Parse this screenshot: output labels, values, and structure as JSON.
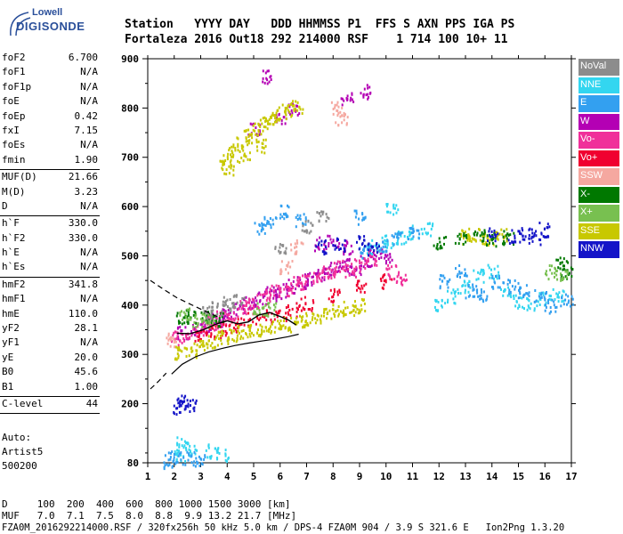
{
  "logo": {
    "line1": "Lowell",
    "line2": "DIGISONDE"
  },
  "header": {
    "labels_line": "Station   YYYY DAY   DDD HHMMSS P1  FFS S AXN PPS IGA PS",
    "values_line": "Fortaleza 2016 Out18 292 214000 RSF    1 714 100 10+ 11"
  },
  "params": [
    {
      "name": "foF2",
      "value": "6.700"
    },
    {
      "name": "foF1",
      "value": "N/A"
    },
    {
      "name": "foF1p",
      "value": "N/A"
    },
    {
      "name": "foE",
      "value": "N/A"
    },
    {
      "name": "foEp",
      "value": "0.42"
    },
    {
      "name": "fxI",
      "value": "7.15"
    },
    {
      "name": "foEs",
      "value": "N/A"
    },
    {
      "name": "fmin",
      "value": "1.90"
    },
    {
      "sep": true
    },
    {
      "name": "MUF(D)",
      "value": "21.66"
    },
    {
      "name": "M(D)",
      "value": "3.23"
    },
    {
      "name": "D",
      "value": "N/A"
    },
    {
      "sep": true
    },
    {
      "name": "h`F",
      "value": "330.0"
    },
    {
      "name": "h`F2",
      "value": "330.0"
    },
    {
      "name": "h`E",
      "value": "N/A"
    },
    {
      "name": "h`Es",
      "value": "N/A"
    },
    {
      "sep": true
    },
    {
      "name": "hmF2",
      "value": "341.8"
    },
    {
      "name": "hmF1",
      "value": "N/A"
    },
    {
      "name": "hmE",
      "value": "110.0"
    },
    {
      "name": "yF2",
      "value": "28.1"
    },
    {
      "name": "yF1",
      "value": "N/A"
    },
    {
      "name": "yE",
      "value": "20.0"
    },
    {
      "name": "B0",
      "value": "45.6"
    },
    {
      "name": "B1",
      "value": "1.00"
    },
    {
      "sep": true
    },
    {
      "name": "C-level",
      "value": "44"
    },
    {
      "sep": true
    }
  ],
  "auto": {
    "line1": "Auto:",
    "line2": "Artist5",
    "line3": "500200"
  },
  "legend": [
    {
      "label": "NoVal",
      "color": "#8c8c8c"
    },
    {
      "label": "NNE",
      "color": "#33d6f0"
    },
    {
      "label": "E",
      "color": "#33a0f0"
    },
    {
      "label": "W",
      "color": "#b400b4"
    },
    {
      "label": "Vo-",
      "color": "#f0309a"
    },
    {
      "label": "Vo+",
      "color": "#f00030"
    },
    {
      "label": "SSW",
      "color": "#f5a8a0"
    },
    {
      "label": "X-",
      "color": "#007800"
    },
    {
      "label": "X+",
      "color": "#78c050"
    },
    {
      "label": "SSE",
      "color": "#c8c800"
    },
    {
      "label": "NNW",
      "color": "#1414c8"
    }
  ],
  "footer": {
    "row1": "D     100  200  400  600  800 1000 1500 3000 [km]",
    "row2": "MUF   7.0  7.1  7.5  8.0  8.8  9.9 13.2 21.7 [MHz]",
    "row3": "FZA0M_2016292214000.RSF / 320fx256h 50 kHz 5.0 km / DPS-4 FZA0M 904 / 3.9 S 321.6 E   Ion2Png 1.3.20"
  },
  "chart_data": {
    "type": "scatter",
    "xlim": [
      1,
      17
    ],
    "ylim": [
      80,
      900
    ],
    "x_ticks": [
      1,
      2,
      3,
      4,
      5,
      6,
      7,
      8,
      9,
      10,
      11,
      12,
      13,
      14,
      15,
      16,
      17
    ],
    "y_ticks": [
      80,
      200,
      300,
      400,
      500,
      600,
      700,
      800,
      900
    ],
    "grid": false,
    "legend_position": "right",
    "series": [
      {
        "name": "W",
        "color": "#b400b4",
        "points": [
          [
            2.3,
            345
          ],
          [
            2.8,
            350
          ],
          [
            3.2,
            358
          ],
          [
            3.6,
            372
          ],
          [
            4.0,
            380
          ],
          [
            4.4,
            392
          ],
          [
            4.8,
            405
          ],
          [
            5.2,
            415
          ],
          [
            5.6,
            425
          ],
          [
            6.0,
            430
          ],
          [
            6.4,
            440
          ],
          [
            6.8,
            450
          ],
          [
            7.2,
            455
          ],
          [
            7.6,
            465
          ],
          [
            8.0,
            475
          ],
          [
            8.4,
            485
          ],
          [
            8.8,
            478
          ],
          [
            9.2,
            490
          ],
          [
            9.6,
            505
          ],
          [
            10.0,
            500
          ],
          [
            7.5,
            525
          ],
          [
            8.0,
            530
          ],
          [
            8.5,
            520
          ],
          [
            5.5,
            865
          ],
          [
            5.0,
            760
          ],
          [
            6.0,
            785
          ],
          [
            6.5,
            800
          ],
          [
            8.5,
            820
          ],
          [
            9.2,
            835
          ]
        ]
      },
      {
        "name": "Vo-",
        "color": "#f0309a",
        "points": [
          [
            2.5,
            340
          ],
          [
            3.0,
            352
          ],
          [
            3.4,
            365
          ],
          [
            3.8,
            375
          ],
          [
            4.2,
            385
          ],
          [
            4.6,
            398
          ],
          [
            5.0,
            408
          ],
          [
            5.4,
            418
          ],
          [
            5.8,
            428
          ],
          [
            6.2,
            432
          ],
          [
            6.6,
            445
          ],
          [
            7.0,
            448
          ],
          [
            7.4,
            462
          ],
          [
            7.8,
            470
          ],
          [
            8.2,
            478
          ],
          [
            8.6,
            472
          ],
          [
            9.0,
            485
          ],
          [
            9.4,
            495
          ],
          [
            10.2,
            470
          ],
          [
            10.6,
            455
          ],
          [
            2.1,
            335
          ]
        ]
      },
      {
        "name": "Vo+",
        "color": "#f00030",
        "points": [
          [
            3.0,
            340
          ],
          [
            3.5,
            348
          ],
          [
            4.0,
            355
          ],
          [
            4.5,
            362
          ],
          [
            5.0,
            372
          ],
          [
            5.5,
            380
          ],
          [
            6.0,
            385
          ],
          [
            6.5,
            392
          ],
          [
            7.0,
            405
          ],
          [
            8.0,
            420
          ],
          [
            9.0,
            440
          ],
          [
            10.0,
            450
          ]
        ]
      },
      {
        "name": "SSE",
        "color": "#c8c800",
        "points": [
          [
            2.2,
            305
          ],
          [
            2.6,
            310
          ],
          [
            3.0,
            320
          ],
          [
            3.4,
            330
          ],
          [
            3.8,
            338
          ],
          [
            4.2,
            342
          ],
          [
            4.6,
            348
          ],
          [
            5.0,
            352
          ],
          [
            5.4,
            355
          ],
          [
            5.8,
            358
          ],
          [
            6.2,
            362
          ],
          [
            6.6,
            368
          ],
          [
            7.0,
            372
          ],
          [
            7.4,
            378
          ],
          [
            7.8,
            385
          ],
          [
            8.2,
            390
          ],
          [
            8.6,
            395
          ],
          [
            9.0,
            400
          ],
          [
            3.9,
            700
          ],
          [
            4.2,
            715
          ],
          [
            4.5,
            730
          ],
          [
            4.8,
            745
          ],
          [
            5.1,
            758
          ],
          [
            5.4,
            770
          ],
          [
            5.7,
            780
          ],
          [
            6.0,
            790
          ],
          [
            6.3,
            798
          ],
          [
            6.6,
            805
          ],
          [
            4.0,
            680
          ],
          [
            4.6,
            705
          ],
          [
            5.2,
            725
          ],
          [
            13.0,
            540
          ],
          [
            13.3,
            545
          ],
          [
            14.3,
            542
          ],
          [
            13.8,
            538
          ]
        ]
      },
      {
        "name": "NNE",
        "color": "#33d6f0",
        "points": [
          [
            2.2,
            100
          ],
          [
            2.3,
            120
          ],
          [
            2.6,
            110
          ],
          [
            3.4,
            105
          ],
          [
            3.8,
            98
          ],
          [
            9.5,
            520
          ],
          [
            10.0,
            530
          ],
          [
            10.5,
            540
          ],
          [
            11.0,
            550
          ],
          [
            11.5,
            555
          ],
          [
            12.0,
            400
          ],
          [
            12.5,
            420
          ],
          [
            13.0,
            440
          ],
          [
            13.5,
            460
          ],
          [
            14.0,
            470
          ],
          [
            14.5,
            430
          ],
          [
            15.0,
            410
          ],
          [
            15.5,
            405
          ],
          [
            16.0,
            415
          ],
          [
            16.5,
            420
          ],
          [
            10.2,
            600
          ]
        ]
      },
      {
        "name": "E",
        "color": "#33a0f0",
        "points": [
          [
            1.8,
            85
          ],
          [
            2.0,
            95
          ],
          [
            2.5,
            90
          ],
          [
            3.0,
            88
          ],
          [
            9.2,
            510
          ],
          [
            9.8,
            522
          ],
          [
            10.4,
            535
          ],
          [
            11.0,
            545
          ],
          [
            12.2,
            450
          ],
          [
            12.8,
            470
          ],
          [
            13.2,
            430
          ],
          [
            13.6,
            420
          ],
          [
            14.2,
            450
          ],
          [
            14.8,
            440
          ],
          [
            15.2,
            430
          ],
          [
            15.8,
            420
          ],
          [
            16.2,
            400
          ],
          [
            16.8,
            410
          ],
          [
            5.2,
            560
          ],
          [
            5.6,
            570
          ],
          [
            6.2,
            590
          ],
          [
            6.8,
            575
          ],
          [
            9.0,
            580
          ]
        ]
      },
      {
        "name": "X-",
        "color": "#007800",
        "points": [
          [
            2.3,
            375
          ],
          [
            2.6,
            380
          ],
          [
            3.2,
            378
          ],
          [
            3.6,
            372
          ],
          [
            12.0,
            530
          ],
          [
            12.8,
            540
          ],
          [
            13.5,
            545
          ],
          [
            14.0,
            535
          ],
          [
            14.6,
            538
          ],
          [
            16.6,
            485
          ],
          [
            16.8,
            470
          ]
        ]
      },
      {
        "name": "X+",
        "color": "#78c050",
        "points": [
          [
            2.4,
            383
          ],
          [
            2.9,
            372
          ],
          [
            3.3,
            370
          ],
          [
            5.2,
            395
          ],
          [
            5.6,
            393
          ],
          [
            16.2,
            470
          ],
          [
            16.6,
            465
          ]
        ]
      },
      {
        "name": "NNW",
        "color": "#1414c8",
        "points": [
          [
            2.1,
            195
          ],
          [
            2.3,
            205
          ],
          [
            2.6,
            200
          ],
          [
            7.5,
            520
          ],
          [
            8.2,
            525
          ],
          [
            9.0,
            530
          ],
          [
            9.5,
            515
          ],
          [
            14.0,
            545
          ],
          [
            14.8,
            540
          ],
          [
            15.6,
            538
          ],
          [
            15.3,
            545
          ],
          [
            16.0,
            555
          ]
        ]
      },
      {
        "name": "SSW",
        "color": "#f5a8a0",
        "points": [
          [
            1.9,
            330
          ],
          [
            6.2,
            480
          ],
          [
            6.6,
            520
          ],
          [
            8.1,
            800
          ],
          [
            8.3,
            780
          ]
        ]
      },
      {
        "name": "NoVal",
        "color": "#8c8c8c",
        "points": [
          [
            3.2,
            385
          ],
          [
            3.6,
            395
          ],
          [
            4.0,
            405
          ],
          [
            4.4,
            410
          ],
          [
            6.0,
            520
          ],
          [
            7.0,
            560
          ],
          [
            7.6,
            580
          ]
        ]
      }
    ],
    "profile_solid": [
      [
        1.9,
        260
      ],
      [
        2.3,
        280
      ],
      [
        2.8,
        295
      ],
      [
        3.3,
        305
      ],
      [
        3.8,
        312
      ],
      [
        4.3,
        318
      ],
      [
        4.8,
        323
      ],
      [
        5.3,
        327
      ],
      [
        5.8,
        331
      ],
      [
        6.3,
        336
      ],
      [
        6.7,
        341
      ]
    ],
    "profile_dashed_lower": [
      [
        1.1,
        230
      ],
      [
        1.4,
        245
      ],
      [
        1.7,
        262
      ]
    ],
    "profile_dashed_upper": [
      [
        1.1,
        450
      ],
      [
        1.6,
        432
      ],
      [
        2.1,
        415
      ],
      [
        2.6,
        402
      ],
      [
        3.0,
        392
      ],
      [
        3.4,
        382
      ],
      [
        3.7,
        375
      ]
    ],
    "trace_black": [
      [
        2.1,
        343
      ],
      [
        2.6,
        342
      ],
      [
        3.1,
        350
      ],
      [
        3.6,
        362
      ],
      [
        4.0,
        368
      ],
      [
        4.4,
        362
      ],
      [
        4.8,
        366
      ],
      [
        5.2,
        380
      ],
      [
        5.6,
        385
      ],
      [
        6.0,
        377
      ],
      [
        6.3,
        370
      ],
      [
        6.6,
        360
      ]
    ]
  }
}
